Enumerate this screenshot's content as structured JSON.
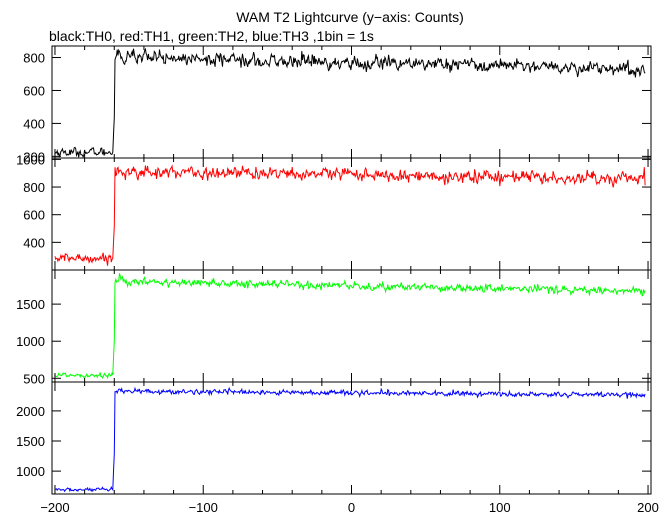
{
  "title": "WAM T2 Lightcurve (y−axis: Counts)",
  "subtitle": "black:TH0, red:TH1, green:TH2, blue:TH3 ,1bin = 1s",
  "chart_data": {
    "type": "line",
    "x_range": [
      -202,
      202
    ],
    "x_ticks": [
      -200,
      -100,
      0,
      100,
      200
    ],
    "x_tick_labels": [
      "−200",
      "−100",
      "0",
      "100",
      "200"
    ],
    "x_bin_seconds": 1,
    "trigger_time": -161,
    "series": [
      {
        "name": "TH0",
        "color": "#000000",
        "ylim": [
          190,
          870
        ],
        "yticks": [
          200,
          400,
          600,
          800
        ],
        "pre_level": 225,
        "post_start": 800,
        "post_end": 730,
        "noise": 28
      },
      {
        "name": "TH1",
        "color": "#ff0000",
        "ylim": [
          200,
          1010
        ],
        "yticks": [
          400,
          600,
          800,
          1000
        ],
        "pre_level": 285,
        "post_start": 915,
        "post_end": 860,
        "noise": 33
      },
      {
        "name": "TH2",
        "color": "#00ff00",
        "ylim": [
          450,
          1960
        ],
        "yticks": [
          500,
          1000,
          1500
        ],
        "pre_level": 545,
        "post_start": 1810,
        "post_end": 1670,
        "noise": 38
      },
      {
        "name": "TH3",
        "color": "#0000ff",
        "ylim": [
          620,
          2480
        ],
        "yticks": [
          1000,
          1500,
          2000
        ],
        "pre_level": 690,
        "post_start": 2330,
        "post_end": 2260,
        "noise": 30
      }
    ]
  }
}
